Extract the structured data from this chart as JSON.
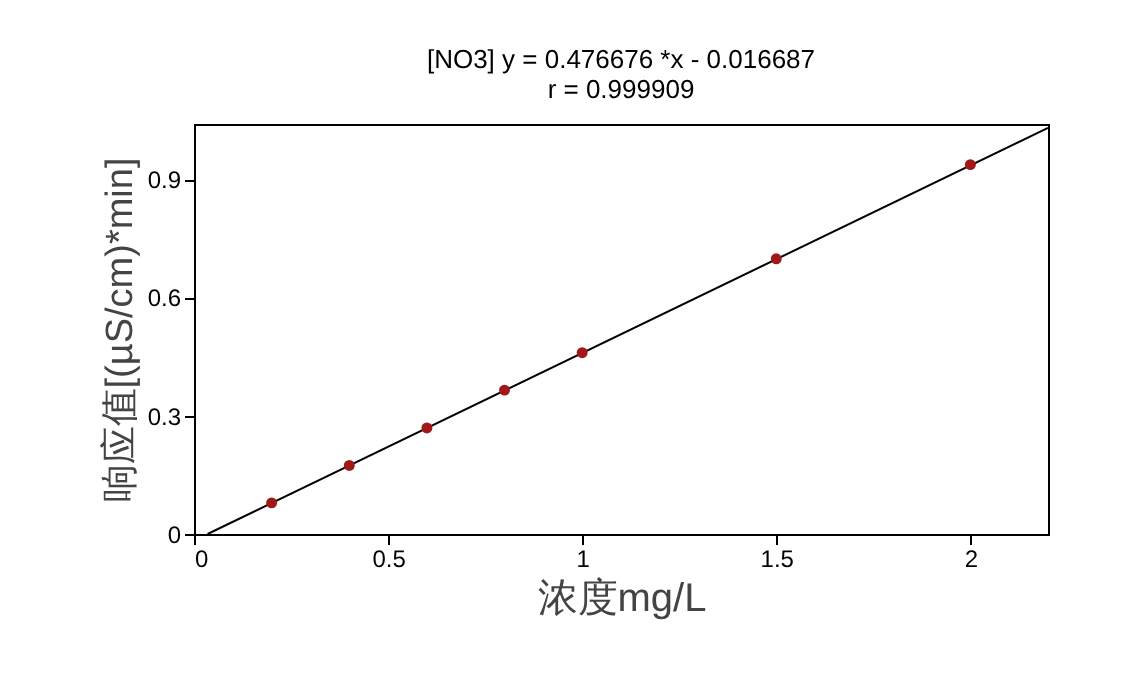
{
  "chart_data": {
    "type": "scatter",
    "title": "[NO3] y = 0.476676 *x - 0.016687",
    "subtitle": "r = 0.999909",
    "xlabel": "浓度mg/L",
    "ylabel": "响应值[(µS/cm)*min]",
    "marker": "circle",
    "grid": false,
    "xlim": [
      0,
      2.2
    ],
    "ylim": [
      0,
      1.04
    ],
    "xticks": [
      0,
      0.5,
      1,
      1.5,
      2
    ],
    "yticks": [
      0,
      0.3,
      0.6,
      0.9
    ],
    "series": [
      {
        "type": "line",
        "color": "#000000",
        "x": [
          0.035,
          2.2
        ],
        "values": [
          0,
          1.03
        ],
        "marker": "none"
      },
      {
        "color": "#a01818",
        "x": [
          0.2,
          0.4,
          0.6,
          0.8,
          1.0,
          1.5,
          2.0
        ],
        "values": [
          0.079,
          0.174,
          0.269,
          0.365,
          0.46,
          0.698,
          0.937
        ]
      }
    ]
  }
}
